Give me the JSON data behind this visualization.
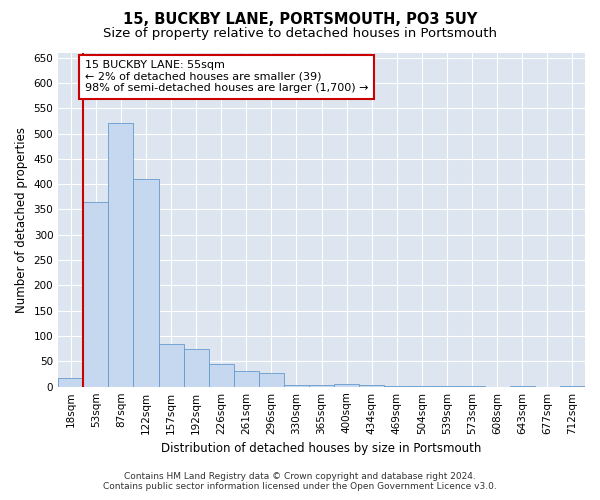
{
  "title1": "15, BUCKBY LANE, PORTSMOUTH, PO3 5UY",
  "title2": "Size of property relative to detached houses in Portsmouth",
  "xlabel": "Distribution of detached houses by size in Portsmouth",
  "ylabel": "Number of detached properties",
  "categories": [
    "18sqm",
    "53sqm",
    "87sqm",
    "122sqm",
    "157sqm",
    "192sqm",
    "226sqm",
    "261sqm",
    "296sqm",
    "330sqm",
    "365sqm",
    "400sqm",
    "434sqm",
    "469sqm",
    "504sqm",
    "539sqm",
    "573sqm",
    "608sqm",
    "643sqm",
    "677sqm",
    "712sqm"
  ],
  "values": [
    18,
    365,
    520,
    410,
    85,
    75,
    45,
    30,
    28,
    3,
    3,
    5,
    3,
    2,
    2,
    1,
    1,
    0,
    1,
    0,
    1
  ],
  "bar_color": "#c5d8ef",
  "bar_edge_color": "#6699cc",
  "marker_color": "#cc0000",
  "annotation_text": "15 BUCKBY LANE: 55sqm\n← 2% of detached houses are smaller (39)\n98% of semi-detached houses are larger (1,700) →",
  "annotation_box_color": "#ffffff",
  "annotation_box_edge": "#cc0000",
  "ylim": [
    0,
    660
  ],
  "yticks": [
    0,
    50,
    100,
    150,
    200,
    250,
    300,
    350,
    400,
    450,
    500,
    550,
    600,
    650
  ],
  "background_color": "#dde6f0",
  "footer1": "Contains HM Land Registry data © Crown copyright and database right 2024.",
  "footer2": "Contains public sector information licensed under the Open Government Licence v3.0.",
  "title1_fontsize": 10.5,
  "title2_fontsize": 9.5,
  "axis_label_fontsize": 8.5,
  "tick_fontsize": 7.5,
  "annotation_fontsize": 8,
  "footer_fontsize": 6.5
}
